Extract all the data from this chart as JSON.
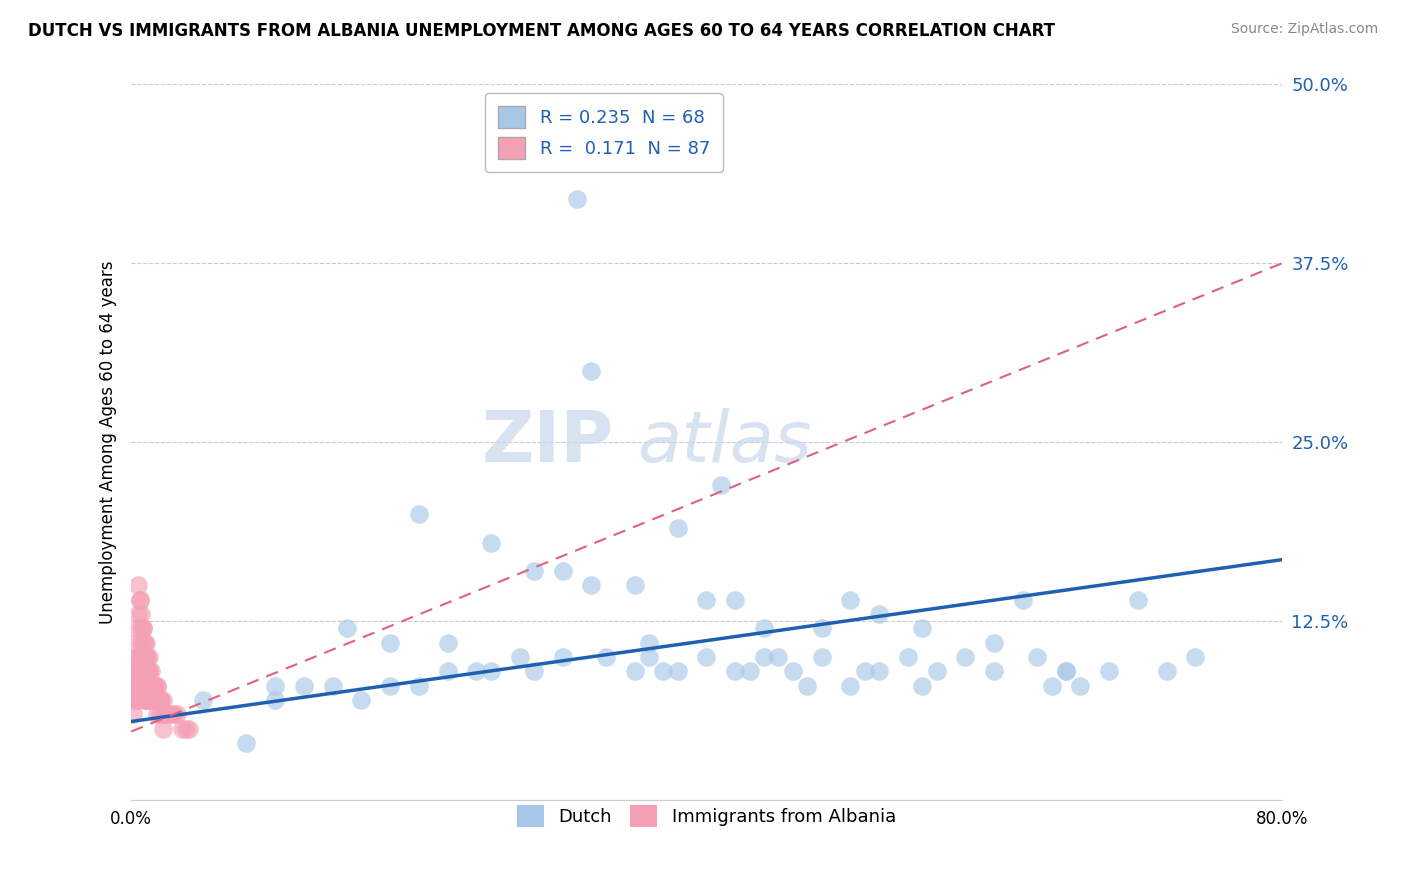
{
  "title": "DUTCH VS IMMIGRANTS FROM ALBANIA UNEMPLOYMENT AMONG AGES 60 TO 64 YEARS CORRELATION CHART",
  "source": "Source: ZipAtlas.com",
  "ylabel": "Unemployment Among Ages 60 to 64 years",
  "xlim": [
    0.0,
    0.8
  ],
  "ylim": [
    0.0,
    0.5
  ],
  "yticks": [
    0.0,
    0.125,
    0.25,
    0.375,
    0.5
  ],
  "ytick_labels": [
    "",
    "12.5%",
    "25.0%",
    "37.5%",
    "50.0%"
  ],
  "xticks": [
    0.0,
    0.1,
    0.2,
    0.3,
    0.4,
    0.5,
    0.6,
    0.7,
    0.8
  ],
  "xtick_labels": [
    "0.0%",
    "",
    "",
    "",
    "",
    "",
    "",
    "",
    "80.0%"
  ],
  "dutch_color": "#a8c8e8",
  "albania_color": "#f4a0b4",
  "dutch_line_color": "#2060b0",
  "albania_line_color": "#e06080",
  "dutch_R": 0.235,
  "dutch_N": 68,
  "albania_R": 0.171,
  "albania_N": 87,
  "watermark_zip": "ZIP",
  "watermark_atlas": "atlas",
  "legend_label_dutch": "Dutch",
  "legend_label_albania": "Immigrants from Albania",
  "dutch_line_x0": 0.0,
  "dutch_line_y0": 0.055,
  "dutch_line_x1": 0.8,
  "dutch_line_y1": 0.168,
  "albania_line_x0": 0.0,
  "albania_line_y0": 0.048,
  "albania_line_x1": 0.8,
  "albania_line_y1": 0.375,
  "dutch_scatter_x": [
    0.05,
    0.1,
    0.12,
    0.14,
    0.16,
    0.18,
    0.2,
    0.22,
    0.24,
    0.25,
    0.27,
    0.28,
    0.3,
    0.31,
    0.32,
    0.33,
    0.35,
    0.36,
    0.37,
    0.38,
    0.4,
    0.41,
    0.42,
    0.43,
    0.44,
    0.45,
    0.46,
    0.47,
    0.48,
    0.5,
    0.51,
    0.52,
    0.54,
    0.55,
    0.56,
    0.58,
    0.6,
    0.62,
    0.63,
    0.64,
    0.65,
    0.66,
    0.68,
    0.7,
    0.72,
    0.74,
    0.2,
    0.25,
    0.3,
    0.35,
    0.4,
    0.15,
    0.18,
    0.22,
    0.1,
    0.08,
    0.5,
    0.55,
    0.6,
    0.65,
    0.38,
    0.42,
    0.28,
    0.32,
    0.48,
    0.52,
    0.44,
    0.36
  ],
  "dutch_scatter_y": [
    0.07,
    0.08,
    0.08,
    0.08,
    0.07,
    0.08,
    0.08,
    0.09,
    0.09,
    0.09,
    0.1,
    0.09,
    0.1,
    0.42,
    0.3,
    0.1,
    0.09,
    0.1,
    0.09,
    0.09,
    0.1,
    0.22,
    0.09,
    0.09,
    0.1,
    0.1,
    0.09,
    0.08,
    0.1,
    0.08,
    0.09,
    0.09,
    0.1,
    0.08,
    0.09,
    0.1,
    0.09,
    0.14,
    0.1,
    0.08,
    0.09,
    0.08,
    0.09,
    0.14,
    0.09,
    0.1,
    0.2,
    0.18,
    0.16,
    0.15,
    0.14,
    0.12,
    0.11,
    0.11,
    0.07,
    0.04,
    0.14,
    0.12,
    0.11,
    0.09,
    0.19,
    0.14,
    0.16,
    0.15,
    0.12,
    0.13,
    0.12,
    0.11
  ],
  "albania_scatter_x": [
    0.001,
    0.002,
    0.002,
    0.003,
    0.003,
    0.003,
    0.004,
    0.004,
    0.004,
    0.004,
    0.005,
    0.005,
    0.005,
    0.005,
    0.006,
    0.006,
    0.006,
    0.007,
    0.007,
    0.007,
    0.007,
    0.008,
    0.008,
    0.008,
    0.009,
    0.009,
    0.009,
    0.01,
    0.01,
    0.01,
    0.01,
    0.011,
    0.011,
    0.012,
    0.012,
    0.012,
    0.013,
    0.013,
    0.014,
    0.014,
    0.015,
    0.015,
    0.016,
    0.016,
    0.017,
    0.018,
    0.018,
    0.019,
    0.02,
    0.021,
    0.022,
    0.023,
    0.024,
    0.025,
    0.026,
    0.028,
    0.03,
    0.032,
    0.035,
    0.038,
    0.04,
    0.003,
    0.004,
    0.005,
    0.006,
    0.007,
    0.008,
    0.009,
    0.01,
    0.011,
    0.012,
    0.014,
    0.016,
    0.018,
    0.02,
    0.005,
    0.006,
    0.007,
    0.008,
    0.009,
    0.01,
    0.012,
    0.014,
    0.016,
    0.018,
    0.02,
    0.022
  ],
  "albania_scatter_y": [
    0.06,
    0.07,
    0.08,
    0.07,
    0.08,
    0.09,
    0.07,
    0.08,
    0.09,
    0.1,
    0.07,
    0.08,
    0.09,
    0.1,
    0.08,
    0.09,
    0.1,
    0.08,
    0.09,
    0.1,
    0.11,
    0.08,
    0.09,
    0.1,
    0.07,
    0.08,
    0.09,
    0.07,
    0.08,
    0.09,
    0.1,
    0.07,
    0.08,
    0.07,
    0.08,
    0.09,
    0.07,
    0.08,
    0.07,
    0.08,
    0.07,
    0.08,
    0.07,
    0.08,
    0.07,
    0.07,
    0.08,
    0.07,
    0.07,
    0.07,
    0.07,
    0.06,
    0.06,
    0.06,
    0.06,
    0.06,
    0.06,
    0.06,
    0.05,
    0.05,
    0.05,
    0.11,
    0.12,
    0.13,
    0.14,
    0.12,
    0.12,
    0.11,
    0.11,
    0.1,
    0.1,
    0.09,
    0.08,
    0.08,
    0.07,
    0.15,
    0.14,
    0.13,
    0.12,
    0.11,
    0.1,
    0.09,
    0.08,
    0.07,
    0.06,
    0.06,
    0.05
  ]
}
